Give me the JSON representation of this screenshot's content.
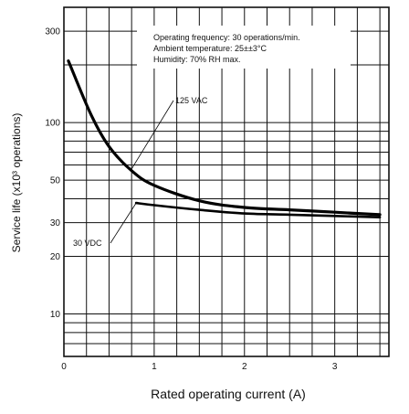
{
  "chart_data": {
    "type": "line",
    "title": "",
    "xlabel": "Rated operating current (A)",
    "ylabel": "Service life (x10³ operations)",
    "xlim": [
      0,
      3.6
    ],
    "ylim": [
      6,
      400
    ],
    "yscale": "log",
    "grid": true,
    "x_ticks": [
      {
        "value": 0,
        "label": "0"
      },
      {
        "value": 1,
        "label": "1"
      },
      {
        "value": 2,
        "label": "2"
      },
      {
        "value": 3,
        "label": "3"
      }
    ],
    "y_ticks": [
      {
        "value": 300,
        "label": "300"
      },
      {
        "value": 100,
        "label": "100"
      },
      {
        "value": 50,
        "label": "50"
      },
      {
        "value": 30,
        "label": "30"
      },
      {
        "value": 20,
        "label": "20"
      },
      {
        "value": 10,
        "label": "10"
      }
    ],
    "conditions": [
      "Operating frequency:  30 operations/min.",
      "Ambient temperature:  25±±3°C",
      "Humidity:  70% RH max."
    ],
    "series": [
      {
        "name": "125 VAC",
        "x": [
          0.05,
          0.3,
          0.5,
          0.75,
          1.0,
          1.5,
          2.0,
          2.5,
          3.0,
          3.5
        ],
        "y": [
          210,
          110,
          75,
          56,
          47,
          39,
          36,
          35,
          34,
          33
        ]
      },
      {
        "name": "30 VDC",
        "x": [
          0.8,
          1.0,
          1.5,
          2.0,
          2.5,
          3.0,
          3.5
        ],
        "y": [
          38,
          37,
          35,
          33.5,
          33,
          32.5,
          32
        ]
      }
    ]
  }
}
